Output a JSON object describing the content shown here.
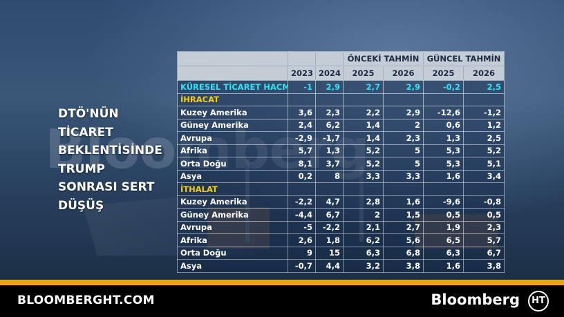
{
  "headline": [
    "DTÖ'NÜN",
    "TİCARET",
    "BEKLENTİSİNDE",
    "TRUMP",
    "SONRASI SERT",
    "DÜŞÜŞ"
  ],
  "watermark": "Bloomberg",
  "table": {
    "group_headers": {
      "previous": "ÖNCEKİ TAHMİN",
      "current": "GÜNCEL TAHMİN"
    },
    "years": [
      "2023",
      "2024",
      "2025",
      "2026",
      "2025",
      "2026"
    ],
    "global": {
      "label": "KÜRESEL TİCARET HACMİ",
      "values": [
        "-1",
        "2,9",
        "2,7",
        "2,9",
        "-0,2",
        "2,5"
      ]
    },
    "sections": [
      {
        "label": "İHRACAT",
        "rows": [
          {
            "label": "Kuzey Amerika",
            "values": [
              "3,6",
              "2,3",
              "2,2",
              "2,9",
              "-12,6",
              "-1,2"
            ]
          },
          {
            "label": "Güney Amerika",
            "values": [
              "2,4",
              "6,2",
              "1,4",
              "2",
              "0,6",
              "1,2"
            ]
          },
          {
            "label": "Avrupa",
            "values": [
              "-2,9",
              "-1,7",
              "1,4",
              "2,3",
              "1,3",
              "2,5"
            ]
          },
          {
            "label": "Afrika",
            "values": [
              "5,7",
              "1,3",
              "5,2",
              "5",
              "5,3",
              "5,2"
            ]
          },
          {
            "label": "Orta Doğu",
            "values": [
              "8,1",
              "3,7",
              "5,2",
              "5",
              "5,3",
              "5,1"
            ]
          },
          {
            "label": "Asya",
            "values": [
              "0,2",
              "8",
              "3,3",
              "3,3",
              "1,6",
              "3,4"
            ]
          }
        ]
      },
      {
        "label": "İTHALAT",
        "rows": [
          {
            "label": "Kuzey Amerika",
            "values": [
              "-2,2",
              "4,7",
              "2,8",
              "1,6",
              "-9,6",
              "-0,8"
            ]
          },
          {
            "label": "Güney Amerika",
            "values": [
              "-4,4",
              "6,7",
              "2",
              "1,5",
              "0,5",
              "0,5"
            ]
          },
          {
            "label": "Avrupa",
            "values": [
              "-5",
              "-2,2",
              "2,1",
              "2,7",
              "1,9",
              "2,3"
            ]
          },
          {
            "label": "Afrika",
            "values": [
              "2,6",
              "1,8",
              "6,2",
              "5,6",
              "6,5",
              "5,7"
            ]
          },
          {
            "label": "Orta Doğu",
            "values": [
              "9",
              "15",
              "6,3",
              "6,8",
              "6,3",
              "6,7"
            ]
          },
          {
            "label": "Asya",
            "values": [
              "-0,7",
              "4,4",
              "3,2",
              "3,8",
              "1,6",
              "3,8"
            ]
          }
        ]
      }
    ]
  },
  "footer": {
    "site": "BLOOMBERGHT.COM",
    "brand": "Bloomberg",
    "logo_text": "HT"
  },
  "colors": {
    "orange": "#f5a300",
    "cyan": "#2fe4f2",
    "yellow": "#f6d000"
  }
}
